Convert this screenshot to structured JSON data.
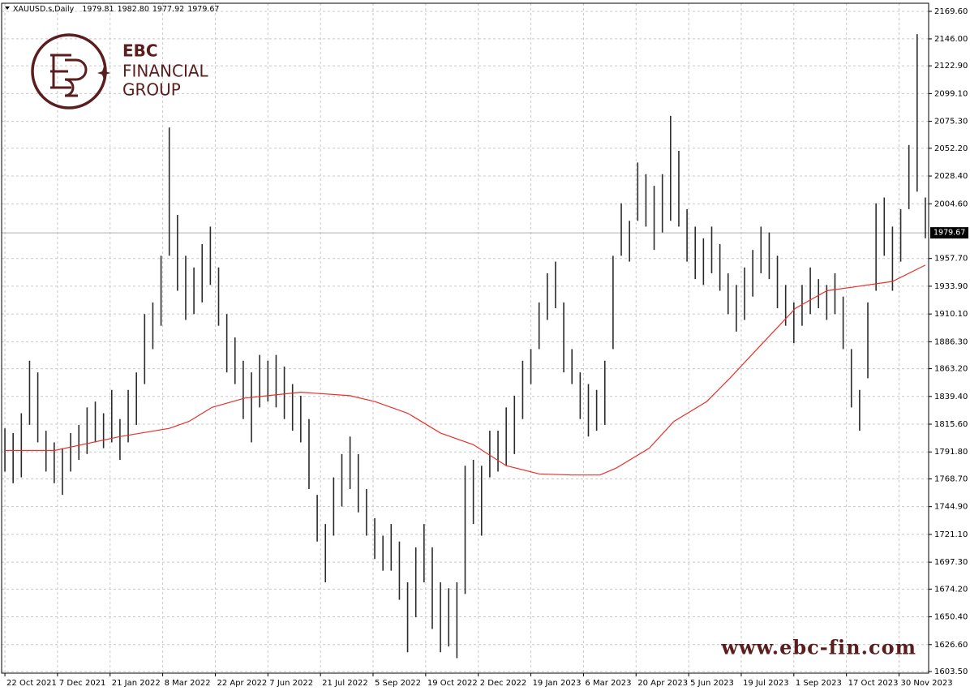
{
  "chart_data": {
    "type": "hilo",
    "symbol": "XAUUSD.s,Daily",
    "header_values": [
      1979.81,
      {
        "value": 1982.8,
        "label": "1982.80"
      },
      1977.92,
      1979.67
    ],
    "last_price": 1979.67,
    "brand": [
      "EBC",
      "FINANCIAL",
      "GROUP"
    ],
    "watermark": "www.ebc-fin.com",
    "grid": true,
    "xlim": [
      -2,
      562
    ],
    "xticks": [
      {
        "value": 0,
        "label": "22 Oct 2021"
      },
      {
        "value": 32,
        "label": "7 Dec 2021"
      },
      {
        "value": 64,
        "label": "21 Jan 2022"
      },
      {
        "value": 96,
        "label": "8 Mar 2022"
      },
      {
        "value": 128,
        "label": "22 Apr 2022"
      },
      {
        "value": 160,
        "label": "7 Jun 2022"
      },
      {
        "value": 192,
        "label": "21 Jul 2022"
      },
      {
        "value": 224,
        "label": "5 Sep 2022"
      },
      {
        "value": 256,
        "label": "19 Oct 2022"
      },
      {
        "value": 288,
        "label": "2 Dec 2022"
      },
      {
        "value": 320,
        "label": "19 Jan 2023"
      },
      {
        "value": 352,
        "label": "6 Mar 2023"
      },
      {
        "value": 384,
        "label": "20 Apr 2023"
      },
      {
        "value": 416,
        "label": "5 Jun 2023"
      },
      {
        "value": 448,
        "label": "19 Jul 2023"
      },
      {
        "value": 480,
        "label": "1 Sep 2023"
      },
      {
        "value": 512,
        "label": "17 Oct 2023"
      },
      {
        "value": 544,
        "label": "30 Nov 2023"
      }
    ],
    "ylim": [
      1603.5,
      2169.6
    ],
    "yticks": [
      {
        "value": 2169.6,
        "label": "2169.60"
      },
      {
        "value": 2146,
        "label": "2146.00"
      },
      {
        "value": 2122.9,
        "label": "2122.90"
      },
      {
        "value": 2099.1,
        "label": "2099.10"
      },
      {
        "value": 2075.3,
        "label": "2075.30"
      },
      {
        "value": 2052.2,
        "label": "2052.20"
      },
      {
        "value": 2028.4,
        "label": "2028.40"
      },
      {
        "value": 2004.6,
        "label": "2004.60"
      },
      {
        "value": 1957.7,
        "label": "1957.70"
      },
      {
        "value": 1933.9,
        "label": "1933.90"
      },
      {
        "value": 1910.1,
        "label": "1910.10"
      },
      {
        "value": 1886.3,
        "label": "1886.30"
      },
      {
        "value": 1863.2,
        "label": "1863.20"
      },
      {
        "value": 1839.4,
        "label": "1839.40"
      },
      {
        "value": 1815.6,
        "label": "1815.60"
      },
      {
        "value": 1791.8,
        "label": "1791.80"
      },
      {
        "value": 1768.7,
        "label": "1768.70"
      },
      {
        "value": 1744.9,
        "label": "1744.90"
      },
      {
        "value": 1721.1,
        "label": "1721.10"
      },
      {
        "value": 1697.3,
        "label": "1697.30"
      },
      {
        "value": 1674.2,
        "label": "1674.20"
      },
      {
        "value": 1650.4,
        "label": "1650.40"
      },
      {
        "value": 1626.6,
        "label": "1626.60"
      },
      {
        "value": 1603.5,
        "label": "1603.50"
      }
    ],
    "bars": {
      "color": "#2b2b2b",
      "x": [
        0,
        5,
        10,
        15,
        20,
        25,
        30,
        35,
        40,
        45,
        50,
        55,
        60,
        65,
        70,
        75,
        80,
        85,
        90,
        95,
        100,
        105,
        110,
        115,
        120,
        125,
        130,
        135,
        140,
        145,
        150,
        155,
        160,
        165,
        170,
        175,
        180,
        185,
        190,
        195,
        200,
        205,
        210,
        215,
        220,
        225,
        230,
        235,
        240,
        245,
        250,
        255,
        260,
        265,
        270,
        275,
        280,
        285,
        290,
        295,
        300,
        305,
        310,
        315,
        320,
        325,
        330,
        335,
        340,
        345,
        350,
        355,
        360,
        365,
        370,
        375,
        380,
        385,
        390,
        395,
        400,
        405,
        410,
        415,
        420,
        425,
        430,
        435,
        440,
        445,
        450,
        455,
        460,
        465,
        470,
        475,
        480,
        485,
        490,
        495,
        500,
        505,
        510,
        515,
        520,
        525,
        530,
        535,
        540,
        545,
        550,
        555,
        560
      ],
      "high": [
        1812,
        1808,
        1825,
        1870,
        1860,
        1810,
        1800,
        1795,
        1808,
        1815,
        1830,
        1835,
        1825,
        1845,
        1820,
        1845,
        1860,
        1910,
        1920,
        1960,
        2070,
        1995,
        1960,
        1950,
        1970,
        1985,
        1950,
        1910,
        1890,
        1870,
        1860,
        1875,
        1870,
        1875,
        1865,
        1850,
        1840,
        1820,
        1755,
        1730,
        1770,
        1790,
        1805,
        1790,
        1760,
        1735,
        1720,
        1730,
        1715,
        1680,
        1710,
        1730,
        1710,
        1680,
        1675,
        1680,
        1780,
        1785,
        1780,
        1810,
        1810,
        1830,
        1840,
        1870,
        1880,
        1920,
        1945,
        1955,
        1920,
        1880,
        1860,
        1850,
        1845,
        1870,
        1960,
        2005,
        1990,
        2040,
        2030,
        2020,
        2030,
        2080,
        2050,
        2000,
        1985,
        1975,
        1985,
        1970,
        1945,
        1935,
        1950,
        1965,
        1985,
        1980,
        1960,
        1935,
        1920,
        1935,
        1950,
        1940,
        1935,
        1945,
        1925,
        1880,
        1845,
        1920,
        2005,
        2010,
        1985,
        2000,
        2055,
        2150,
        2010
      ],
      "low": [
        1775,
        1765,
        1770,
        1815,
        1800,
        1775,
        1765,
        1755,
        1775,
        1785,
        1790,
        1800,
        1795,
        1800,
        1785,
        1800,
        1815,
        1850,
        1880,
        1900,
        1960,
        1930,
        1905,
        1910,
        1920,
        1935,
        1900,
        1860,
        1850,
        1820,
        1800,
        1830,
        1835,
        1830,
        1820,
        1810,
        1800,
        1760,
        1715,
        1680,
        1720,
        1745,
        1760,
        1740,
        1720,
        1700,
        1690,
        1690,
        1665,
        1620,
        1650,
        1680,
        1640,
        1620,
        1625,
        1615,
        1670,
        1730,
        1720,
        1770,
        1775,
        1780,
        1790,
        1820,
        1850,
        1880,
        1905,
        1915,
        1860,
        1850,
        1820,
        1805,
        1810,
        1815,
        1880,
        1960,
        1955,
        1990,
        1985,
        1965,
        1980,
        1990,
        1985,
        1955,
        1940,
        1935,
        1945,
        1930,
        1910,
        1895,
        1905,
        1925,
        1945,
        1940,
        1915,
        1900,
        1885,
        1900,
        1910,
        1915,
        1905,
        1910,
        1880,
        1830,
        1810,
        1855,
        1930,
        1960,
        1930,
        1955,
        2000,
        2015,
        1975
      ]
    },
    "moving_average": {
      "color": "#e8302a",
      "x": [
        0,
        30,
        50,
        70,
        100,
        112,
        126,
        146,
        180,
        210,
        225,
        245,
        265,
        285,
        305,
        325,
        345,
        362,
        372,
        392,
        407,
        427,
        441,
        461,
        481,
        500,
        520,
        540,
        560
      ],
      "values": [
        1793,
        1793,
        1799,
        1805,
        1812,
        1818,
        1830,
        1838,
        1843,
        1840,
        1835,
        1825,
        1808,
        1798,
        1780,
        1773,
        1772,
        1772,
        1778,
        1795,
        1818,
        1835,
        1855,
        1885,
        1915,
        1930,
        1934,
        1938,
        1952
      ]
    }
  }
}
